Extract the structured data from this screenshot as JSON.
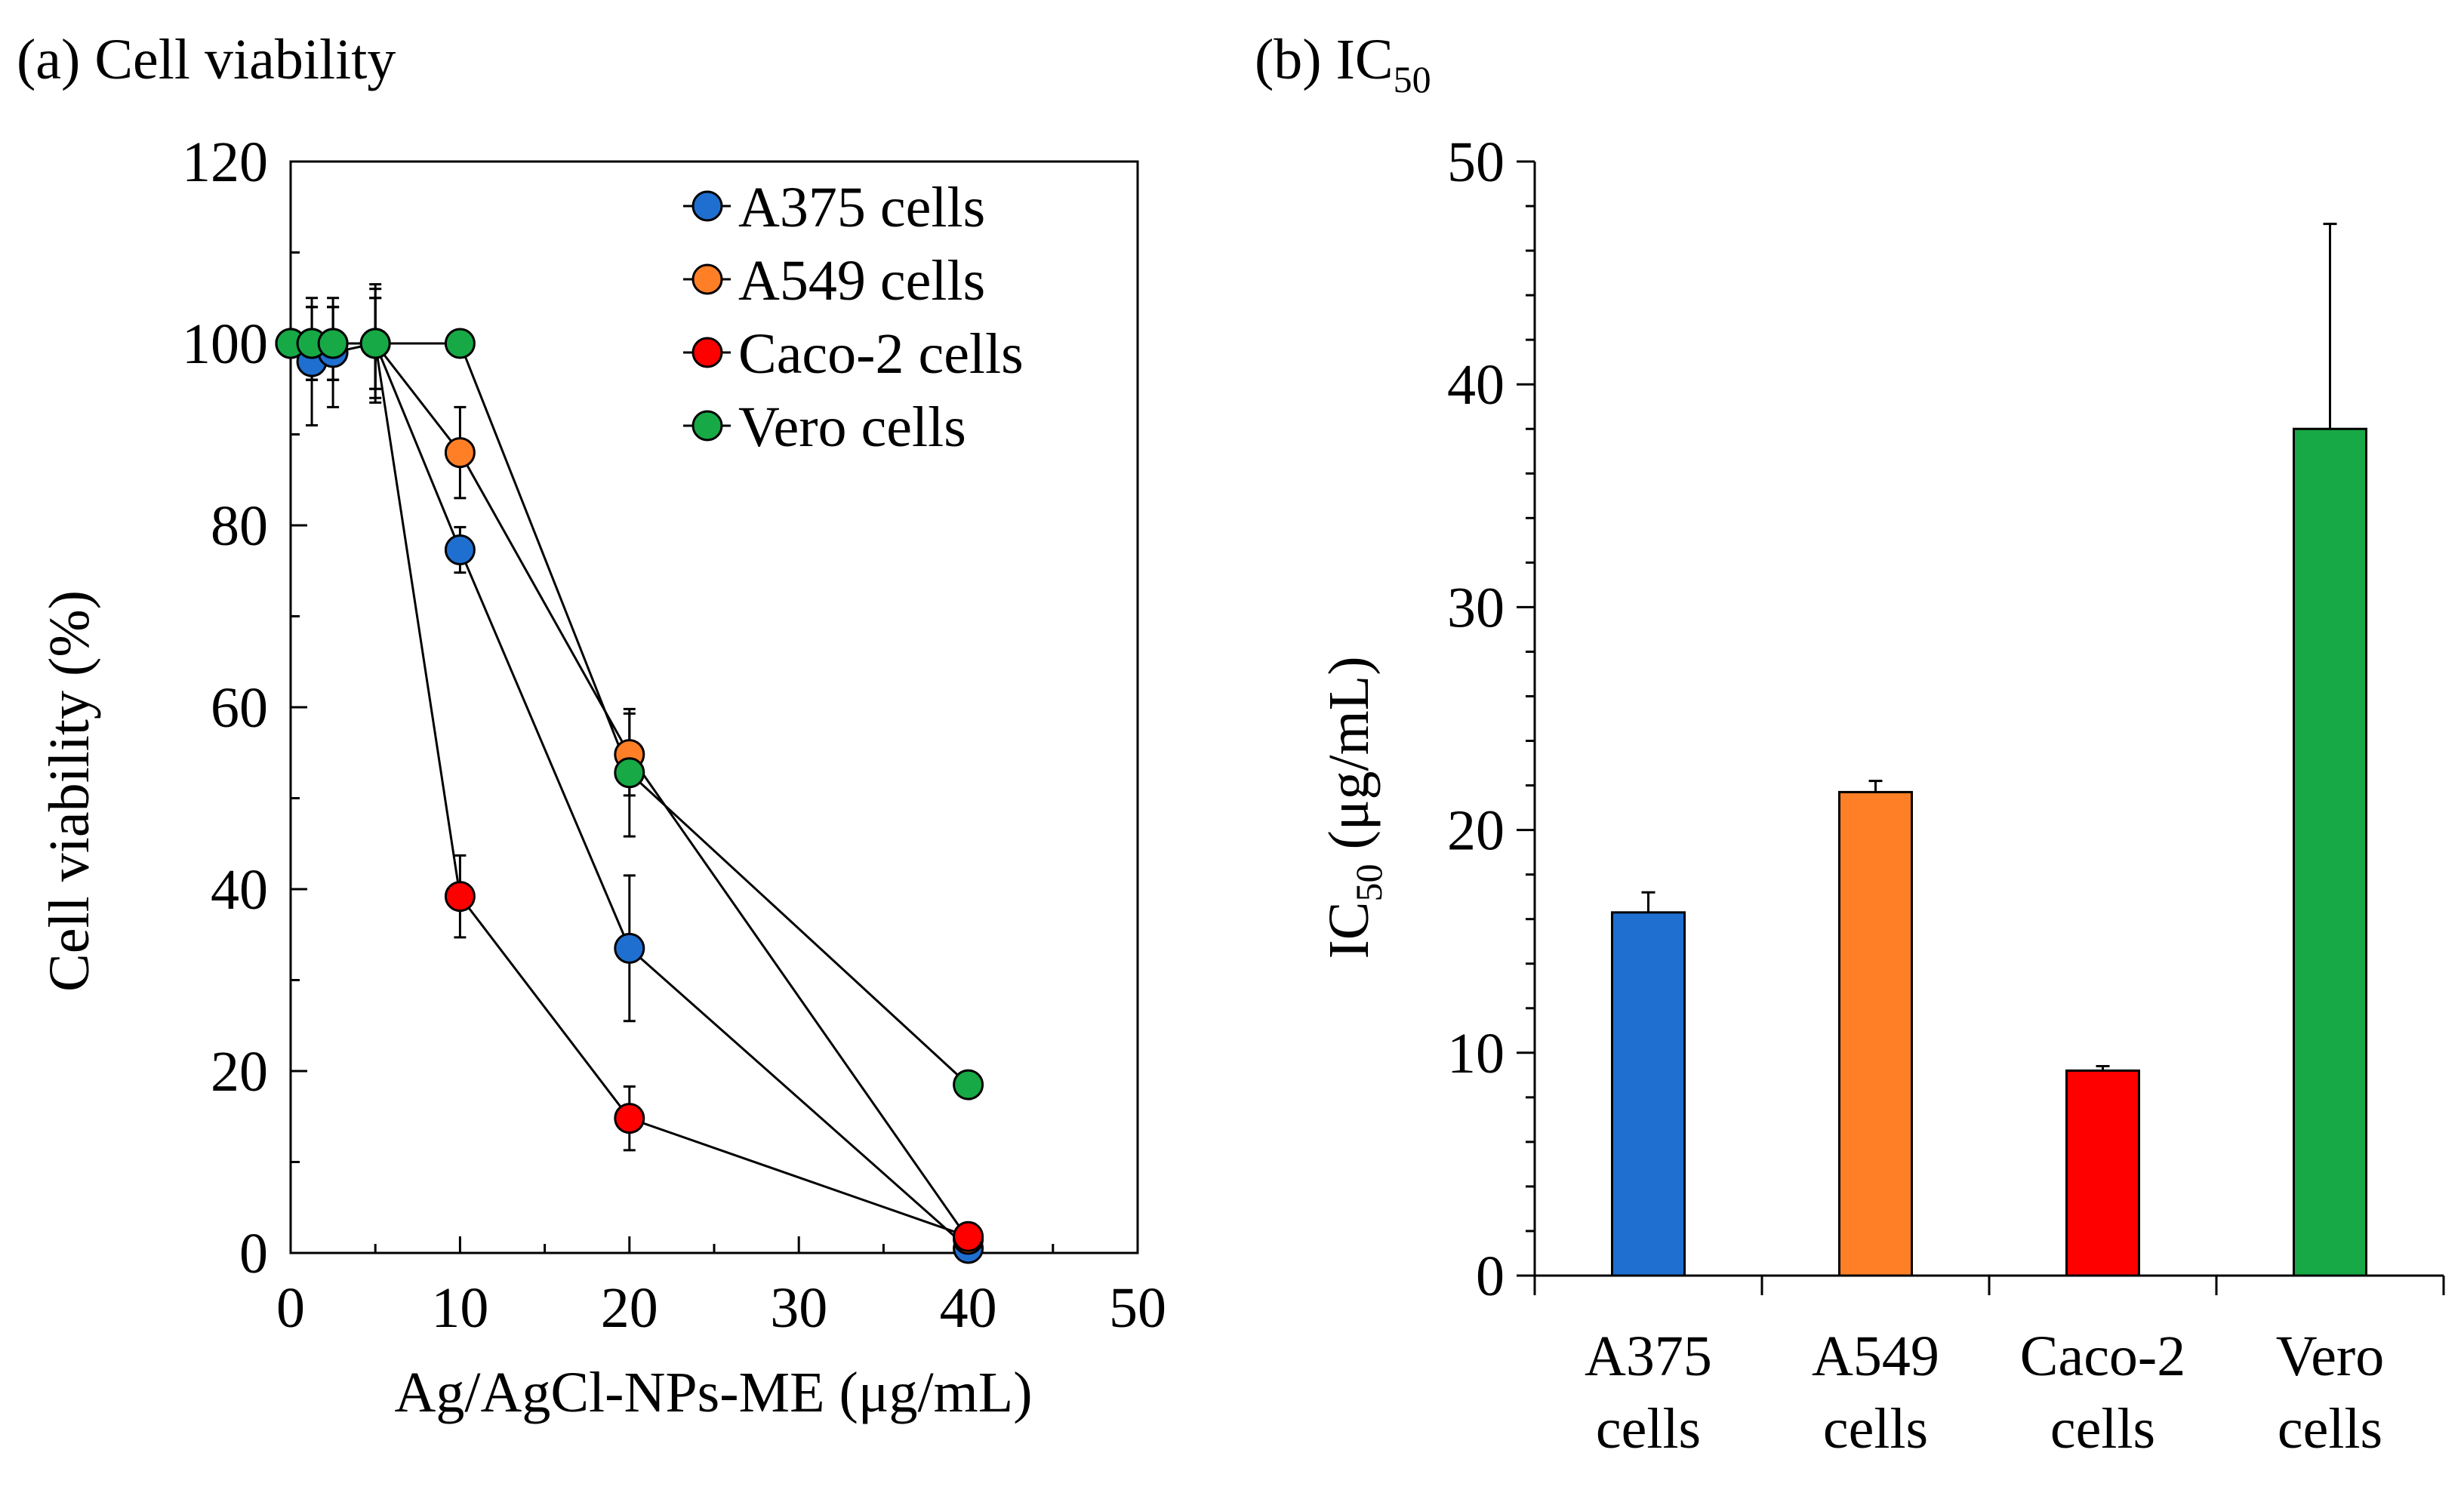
{
  "chart_data": [
    {
      "type": "line",
      "panel": "(a)",
      "title": "(a) Cell viability",
      "xlabel": "Ag/AgCl-NPs-ME (μg/mL)",
      "ylabel": "Cell viability (%)",
      "xlim": [
        0,
        50
      ],
      "ylim": [
        0,
        120
      ],
      "xticks": [
        0,
        10,
        20,
        30,
        40,
        50
      ],
      "yticks": [
        0,
        20,
        40,
        60,
        80,
        100,
        120
      ],
      "legend_position": "top-right",
      "series": [
        {
          "name": "A375 cells",
          "color": "#1f6fd0",
          "x": [
            0,
            1.25,
            2.5,
            5,
            10,
            20,
            40
          ],
          "y": [
            100,
            98,
            99,
            100,
            77.3,
            33.5,
            0.5
          ],
          "err": [
            0,
            7,
            6,
            6,
            2.5,
            8,
            0
          ]
        },
        {
          "name": "A549 cells",
          "color": "#ff7f27",
          "x": [
            0,
            1.25,
            2.5,
            5,
            10,
            20,
            40
          ],
          "y": [
            100,
            100,
            100,
            100,
            88,
            54.8,
            1.5
          ],
          "err": [
            0,
            4,
            4,
            5,
            5,
            4.5,
            0
          ]
        },
        {
          "name": "Caco-2 cells",
          "color": "#ff0000",
          "x": [
            0,
            1.25,
            2.5,
            5,
            10,
            20,
            40
          ],
          "y": [
            100,
            100,
            100,
            100,
            39.2,
            14.8,
            1.8
          ],
          "err": [
            0,
            4,
            4,
            5,
            4.5,
            3.5,
            0
          ]
        },
        {
          "name": "Vero cells",
          "color": "#17a945",
          "x": [
            0,
            1.25,
            2.5,
            5,
            10,
            20,
            40
          ],
          "y": [
            100,
            100,
            100,
            100,
            100,
            52.8,
            18.5
          ],
          "err": [
            0,
            4,
            4,
            6.5,
            0,
            7,
            0
          ]
        }
      ]
    },
    {
      "type": "bar",
      "panel": "(b)",
      "title_main": "(b) IC",
      "title_sub": "50",
      "ylabel_main": "IC",
      "ylabel_sub": "50",
      "ylabel_rest": " (μg/mL)",
      "ylim": [
        0,
        50
      ],
      "yticks": [
        0,
        10,
        20,
        30,
        40,
        50
      ],
      "categories": [
        [
          "A375",
          "cells"
        ],
        [
          "A549",
          "cells"
        ],
        [
          "Caco-2",
          "cells"
        ],
        [
          "Vero",
          "cells"
        ]
      ],
      "values": [
        16.3,
        21.7,
        9.2,
        38
      ],
      "errors": [
        0.9,
        0.5,
        0.2,
        9.2
      ],
      "colors": [
        "#1f6fd0",
        "#ff7f27",
        "#ff0000",
        "#17a945"
      ]
    }
  ]
}
